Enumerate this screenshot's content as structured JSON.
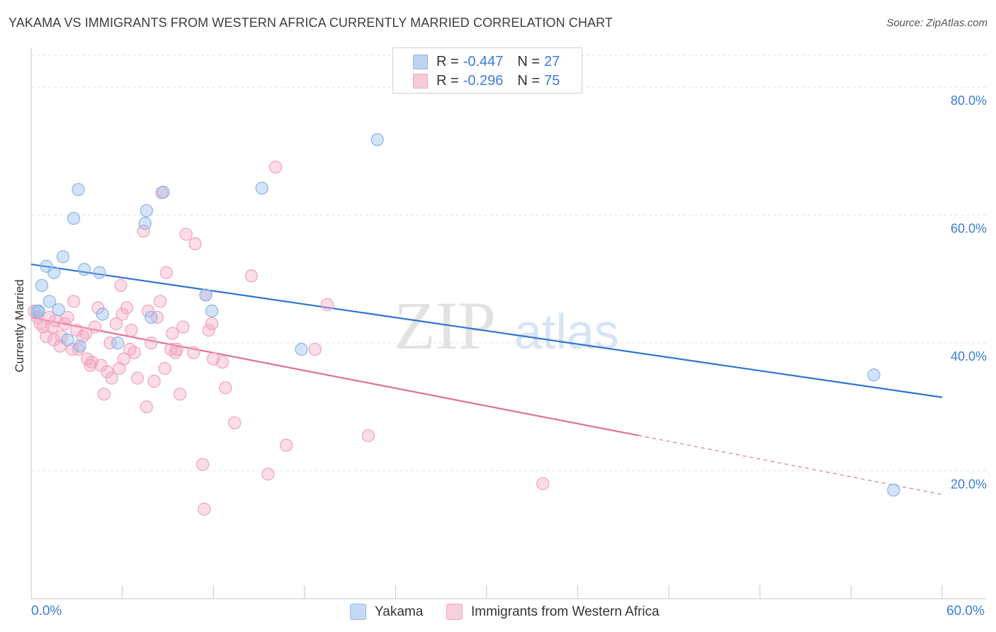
{
  "title": "YAKAMA VS IMMIGRANTS FROM WESTERN AFRICA CURRENTLY MARRIED CORRELATION CHART",
  "source": "Source: ZipAtlas.com",
  "watermark": {
    "zip": "ZIP",
    "atlas": "atlas"
  },
  "legend": {
    "r_label": "R =",
    "n_label": "N =",
    "rows": [
      {
        "name": "Yakama",
        "r": "-0.447",
        "n": "27",
        "color": "#8fb8ea"
      },
      {
        "name": "Immigrants from Western Africa",
        "r": "-0.296",
        "n": "75",
        "color": "#f2a6c0"
      }
    ]
  },
  "chart_data": {
    "type": "scatter",
    "title": "YAKAMA VS IMMIGRANTS FROM WESTERN AFRICA CURRENTLY MARRIED CORRELATION CHART",
    "xlabel": "",
    "ylabel": "Currently Married",
    "xlim": [
      0,
      60
    ],
    "ylim": [
      0,
      85
    ],
    "x_tick_labels": [
      "0.0%",
      "60.0%"
    ],
    "y_ticks": [
      20,
      40,
      60,
      80
    ],
    "y_tick_labels": [
      "20.0%",
      "40.0%",
      "60.0%",
      "80.0%"
    ],
    "grid": true,
    "legend_position": "top-center",
    "series": [
      {
        "name": "Yakama",
        "color": "#8fb8ea",
        "line_color": "#2f74d0",
        "trend": {
          "x0": 0,
          "y0": 52.3,
          "x1": 60,
          "y1": 31.5,
          "dash_from": null
        },
        "points": [
          [
            0.5,
            45.0
          ],
          [
            0.7,
            49.0
          ],
          [
            1.0,
            52.0
          ],
          [
            1.2,
            46.5
          ],
          [
            1.5,
            51.0
          ],
          [
            1.8,
            45.2
          ],
          [
            2.1,
            53.5
          ],
          [
            2.4,
            40.5
          ],
          [
            2.8,
            59.5
          ],
          [
            3.1,
            64.0
          ],
          [
            3.2,
            39.5
          ],
          [
            3.5,
            51.5
          ],
          [
            4.5,
            51.0
          ],
          [
            4.7,
            44.5
          ],
          [
            5.7,
            40.0
          ],
          [
            7.5,
            58.7
          ],
          [
            7.6,
            60.7
          ],
          [
            7.9,
            44.0
          ],
          [
            8.7,
            63.6
          ],
          [
            11.5,
            47.5
          ],
          [
            11.9,
            45.0
          ],
          [
            15.2,
            64.2
          ],
          [
            17.8,
            39.0
          ],
          [
            22.8,
            71.8
          ],
          [
            55.5,
            35.0
          ],
          [
            56.8,
            17.0
          ],
          [
            0.4,
            45.0
          ]
        ]
      },
      {
        "name": "Immigrants from Western Africa",
        "color": "#f2a6c0",
        "line_color": "#e0709a",
        "trend": {
          "x0": 0,
          "y0": 44.0,
          "x1": 60,
          "y1": 16.3,
          "dash_from": 40.0
        },
        "points": [
          [
            0.2,
            45.0
          ],
          [
            0.4,
            44.0
          ],
          [
            0.6,
            43.0
          ],
          [
            0.8,
            42.5
          ],
          [
            1.0,
            41.0
          ],
          [
            1.2,
            44.0
          ],
          [
            1.4,
            42.5
          ],
          [
            1.6,
            43.5
          ],
          [
            1.9,
            39.5
          ],
          [
            2.2,
            43.0
          ],
          [
            2.4,
            44.0
          ],
          [
            2.7,
            39.0
          ],
          [
            2.8,
            46.5
          ],
          [
            3.1,
            39.0
          ],
          [
            3.4,
            41.0
          ],
          [
            3.6,
            41.5
          ],
          [
            3.7,
            37.5
          ],
          [
            3.9,
            36.5
          ],
          [
            4.0,
            37.0
          ],
          [
            4.2,
            42.5
          ],
          [
            4.4,
            45.5
          ],
          [
            4.6,
            36.5
          ],
          [
            4.8,
            32.0
          ],
          [
            5.0,
            35.5
          ],
          [
            5.2,
            40.0
          ],
          [
            5.3,
            34.5
          ],
          [
            5.6,
            43.0
          ],
          [
            5.8,
            36.0
          ],
          [
            5.9,
            49.0
          ],
          [
            6.1,
            37.5
          ],
          [
            6.3,
            45.5
          ],
          [
            6.5,
            39.0
          ],
          [
            6.6,
            42.0
          ],
          [
            6.8,
            38.5
          ],
          [
            7.0,
            34.5
          ],
          [
            7.4,
            57.5
          ],
          [
            7.6,
            30.0
          ],
          [
            7.7,
            45.0
          ],
          [
            7.9,
            40.0
          ],
          [
            8.1,
            34.0
          ],
          [
            8.3,
            44.0
          ],
          [
            8.5,
            46.5
          ],
          [
            8.6,
            63.5
          ],
          [
            8.8,
            36.0
          ],
          [
            8.9,
            51.0
          ],
          [
            9.2,
            39.0
          ],
          [
            9.3,
            41.5
          ],
          [
            9.5,
            38.5
          ],
          [
            9.6,
            39.0
          ],
          [
            9.8,
            32.0
          ],
          [
            10.0,
            42.5
          ],
          [
            10.2,
            57.0
          ],
          [
            10.7,
            38.5
          ],
          [
            10.8,
            55.5
          ],
          [
            11.3,
            21.0
          ],
          [
            11.4,
            14.0
          ],
          [
            11.5,
            47.5
          ],
          [
            11.7,
            42.0
          ],
          [
            11.9,
            43.0
          ],
          [
            12.0,
            37.5
          ],
          [
            12.6,
            37.0
          ],
          [
            12.8,
            33.0
          ],
          [
            13.4,
            27.5
          ],
          [
            14.5,
            50.5
          ],
          [
            15.6,
            19.5
          ],
          [
            16.1,
            67.5
          ],
          [
            16.8,
            24.0
          ],
          [
            18.7,
            39.0
          ],
          [
            19.5,
            46.0
          ],
          [
            22.2,
            25.5
          ],
          [
            33.7,
            18.0
          ],
          [
            3.0,
            42.0
          ],
          [
            1.5,
            40.5
          ],
          [
            6.0,
            44.5
          ],
          [
            2.0,
            41.0
          ]
        ]
      }
    ]
  }
}
